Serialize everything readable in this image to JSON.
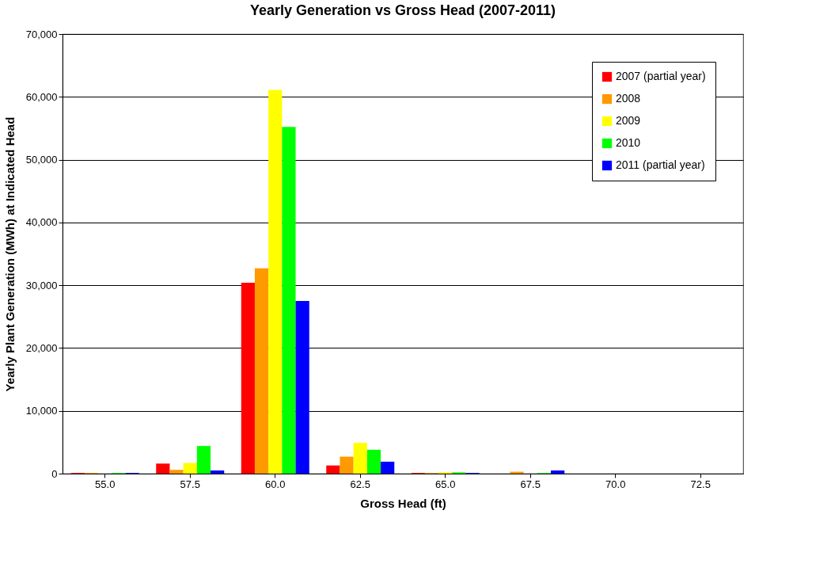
{
  "chart_data": {
    "type": "bar",
    "title": "Yearly Generation vs Gross Head (2007-2011)",
    "xlabel": "Gross Head (ft)",
    "ylabel": "Yearly Plant Generation (MWh) at Indicated Head",
    "categories": [
      "55.0",
      "57.5",
      "60.0",
      "62.5",
      "65.0",
      "67.5",
      "70.0",
      "72.5"
    ],
    "series": [
      {
        "name": "2007 (partial year)",
        "color": "#ff0000",
        "values": [
          100,
          1600,
          30400,
          1300,
          100,
          0,
          0,
          0
        ]
      },
      {
        "name": "2008",
        "color": "#ff9900",
        "values": [
          100,
          600,
          32700,
          2700,
          100,
          300,
          0,
          0
        ]
      },
      {
        "name": "2009",
        "color": "#ffff00",
        "values": [
          0,
          1700,
          61100,
          4900,
          200,
          0,
          0,
          0
        ]
      },
      {
        "name": "2010",
        "color": "#00ff00",
        "values": [
          100,
          4400,
          55200,
          3800,
          200,
          100,
          0,
          0
        ]
      },
      {
        "name": "2011 (partial year)",
        "color": "#0000ff",
        "values": [
          100,
          500,
          27500,
          1900,
          100,
          500,
          0,
          0
        ]
      }
    ],
    "ylim": [
      0,
      70000
    ],
    "yticks": [
      0,
      {
        "value": 10000,
        "label": "10,000"
      },
      {
        "value": 20000,
        "label": "20,000"
      },
      {
        "value": 30000,
        "label": "30,000"
      },
      {
        "value": 40000,
        "label": "40,000"
      },
      {
        "value": 50000,
        "label": "50,000"
      },
      {
        "value": 60000,
        "label": "60,000"
      },
      {
        "value": 70000,
        "label": "70,000"
      }
    ],
    "grid": "y",
    "legend": "top right"
  }
}
